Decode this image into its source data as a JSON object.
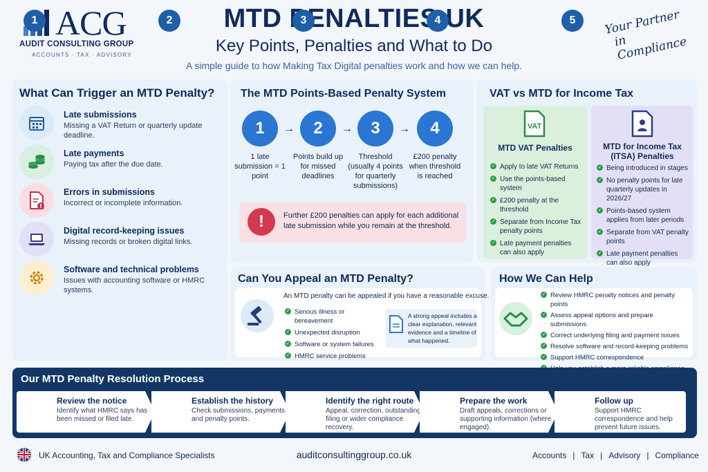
{
  "header": {
    "logo_text": "ACG",
    "logo_subtitle": "AUDIT CONSULTING GROUP",
    "logo_tagline": "ACCOUNTS · TAX · ADVISORY",
    "title": "MTD PENALTIES UK",
    "subtitle": "Key Points, Penalties and What to Do",
    "intro": "A simple guide to how Making Tax Digital penalties work and how we can help.",
    "partner_line1": "Your Partner",
    "partner_line2": "in Compliance"
  },
  "triggers": {
    "heading": "What Can Trigger an MTD Penalty?",
    "items": [
      {
        "title": "Late submissions",
        "desc": "Missing a VAT Return or quarterly update deadline.",
        "icon": "calendar-icon",
        "color": "#dceaf9"
      },
      {
        "title": "Late payments",
        "desc": "Paying tax after the due date.",
        "icon": "money-icon",
        "color": "#d7f0df"
      },
      {
        "title": "Errors in submissions",
        "desc": "Incorrect or incomplete information.",
        "icon": "document-error-icon",
        "color": "#f9dde2"
      },
      {
        "title": "Digital record-keeping issues",
        "desc": "Missing records or broken digital links.",
        "icon": "laptop-icon",
        "color": "#e2e0f6"
      },
      {
        "title": "Software and technical problems",
        "desc": "Issues with accounting software or HMRC systems.",
        "icon": "gear-icon",
        "color": "#fbefcf"
      }
    ]
  },
  "points": {
    "heading": "The MTD Points-Based Penalty System",
    "steps": [
      {
        "num": "1",
        "label": "1 late submission = 1 point"
      },
      {
        "num": "2",
        "label": "Points build up for missed deadlines"
      },
      {
        "num": "3",
        "label": "Threshold (usually 4 points for quarterly submissions)"
      },
      {
        "num": "4",
        "label": "£200 penalty when threshold is reached"
      }
    ],
    "alert": "Further £200 penalties can apply for each additional late submission while you remain at the threshold."
  },
  "vat": {
    "heading": "VAT vs MTD for Income Tax",
    "vat_icon_label": "VAT",
    "vat_title": "MTD VAT Penalties",
    "vat_items": [
      "Apply to late VAT Returns",
      "Use the points-based system",
      "£200 penalty at the threshold",
      "Separate from Income Tax penalty points",
      "Late payment penalties can also apply"
    ],
    "itsa_title": "MTD for Income Tax (ITSA) Penalties",
    "itsa_items": [
      "Being introduced in stages",
      "No penalty points for late quarterly updates in 2026/27",
      "Points-based system applies from later periods",
      "Separate from VAT penalty points",
      "Late payment penalties can also apply"
    ]
  },
  "appeal": {
    "heading": "Can You Appeal an MTD Penalty?",
    "lead": "An MTD penalty can be appealed if you have a reasonable excuse.",
    "items": [
      "Serious illness or bereavement",
      "Unexpected disruption",
      "Software or system failures",
      "HMRC service problems"
    ],
    "note": "A strong appeal includes a clear explanation, relevant evidence and a timeline of what happened."
  },
  "help": {
    "heading": "How We Can Help",
    "items": [
      "Review HMRC penalty notices and penalty points",
      "Assess appeal options and prepare submissions",
      "Correct underlying filing and payment issues",
      "Resolve software and record-keeping problems",
      "Support HMRC correspondence",
      "Help you establish a more reliable compliance process"
    ]
  },
  "process": {
    "heading": "Our MTD Penalty Resolution Process",
    "steps": [
      {
        "num": "1",
        "title": "Review the notice",
        "desc": "Identify what HMRC says has been missed or filed late."
      },
      {
        "num": "2",
        "title": "Establish the history",
        "desc": "Check submissions, payments and penalty points."
      },
      {
        "num": "3",
        "title": "Identify the right route",
        "desc": "Appeal, correction, outstanding filing or wider compliance recovery."
      },
      {
        "num": "4",
        "title": "Prepare the work",
        "desc": "Draft appeals, corrections or supporting information (where engaged)."
      },
      {
        "num": "5",
        "title": "Follow up",
        "desc": "Support HMRC correspondence and help prevent future issues."
      }
    ]
  },
  "footer": {
    "left": "UK Accounting, Tax and Compliance Specialists",
    "url": "auditconsultinggroup.co.uk",
    "links": [
      "Accounts",
      "Tax",
      "Advisory",
      "Compliance"
    ]
  },
  "colors": {
    "navy": "#0f2a5c",
    "blue": "#2a76d2",
    "green": "#2e9b4c",
    "red": "#d33a4f"
  }
}
